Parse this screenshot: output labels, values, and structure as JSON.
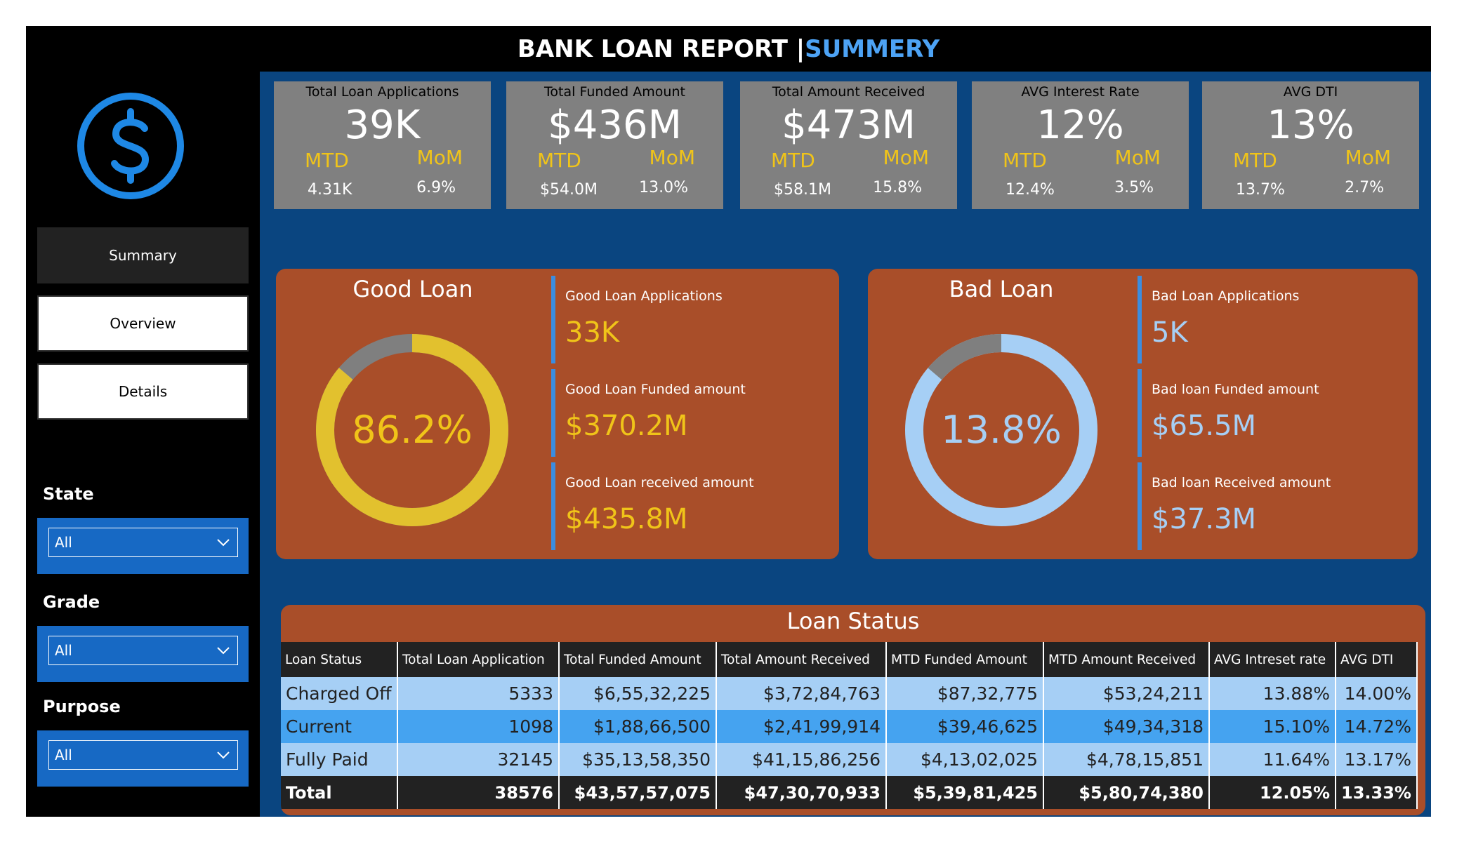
{
  "header": {
    "title_main": "BANK LOAN REPORT | ",
    "title_accent": "SUMMERY"
  },
  "colors": {
    "accent_blue": "#4da3f5",
    "good_yellow": "#f0c419",
    "bad_blue": "#a6cff5",
    "panel_orange": "#a94e29",
    "main_bg": "#0a4580"
  },
  "sidebar": {
    "logo_icon": "dollar-circle-icon",
    "nav": [
      {
        "label": "Summary",
        "active": true
      },
      {
        "label": "Overview",
        "active": false
      },
      {
        "label": "Details",
        "active": false
      }
    ],
    "filters": [
      {
        "label": "State",
        "value": "All"
      },
      {
        "label": "Grade",
        "value": "All"
      },
      {
        "label": "Purpose",
        "value": "All"
      }
    ]
  },
  "kpis": [
    {
      "title": "Total Loan Applications",
      "value": "39K",
      "mtd_label": "MTD",
      "mom_label": "MoM",
      "mtd": "4.31K",
      "mom": "6.9%"
    },
    {
      "title": "Total Funded Amount",
      "value": "$436M",
      "mtd_label": "MTD",
      "mom_label": "MoM",
      "mtd": "$54.0M",
      "mom": "13.0%"
    },
    {
      "title": "Total Amount Received",
      "value": "$473M",
      "mtd_label": "MTD",
      "mom_label": "MoM",
      "mtd": "$58.1M",
      "mom": "15.8%"
    },
    {
      "title": "AVG Interest Rate",
      "value": "12%",
      "mtd_label": "MTD",
      "mom_label": "MoM",
      "mtd": "12.4%",
      "mom": "3.5%"
    },
    {
      "title": "AVG DTI",
      "value": "13%",
      "mtd_label": "MTD",
      "mom_label": "MoM",
      "mtd": "13.7%",
      "mom": "2.7%"
    }
  ],
  "good_loan": {
    "title": "Good Loan",
    "percent_label": "86.2%",
    "percent_value": 86.2,
    "stats": [
      {
        "label": "Good Loan Applications",
        "value": "33K"
      },
      {
        "label": "Good Loan Funded amount",
        "value": "$370.2M"
      },
      {
        "label": "Good Loan received amount",
        "value": "$435.8M"
      }
    ]
  },
  "bad_loan": {
    "title": "Bad Loan",
    "percent_label": "13.8%",
    "percent_value": 13.8,
    "stats": [
      {
        "label": "Bad Loan Applications",
        "value": "5K"
      },
      {
        "label": "Bad loan Funded amount",
        "value": "$65.5M"
      },
      {
        "label": "Bad loan Received amount",
        "value": "$37.3M"
      }
    ]
  },
  "loan_status": {
    "title": "Loan Status",
    "columns": [
      "Loan Status",
      "Total Loan Application",
      "Total Funded Amount",
      "Total Amount Received",
      "MTD Funded Amount",
      "MTD Amount Received",
      "AVG Intreset rate",
      "AVG DTI"
    ],
    "rows": [
      [
        "Charged Off",
        "5333",
        "$6,55,32,225",
        "$3,72,84,763",
        "$87,32,775",
        "$53,24,211",
        "13.88%",
        "14.00%"
      ],
      [
        "Current",
        "1098",
        "$1,88,66,500",
        "$2,41,99,914",
        "$39,46,625",
        "$49,34,318",
        "15.10%",
        "14.72%"
      ],
      [
        "Fully Paid",
        "32145",
        "$35,13,58,350",
        "$41,15,86,256",
        "$4,13,02,025",
        "$4,78,15,851",
        "11.64%",
        "13.17%"
      ]
    ],
    "total": [
      "Total",
      "38576",
      "$43,57,57,075",
      "$47,30,70,933",
      "$5,39,81,425",
      "$5,80,74,380",
      "12.05%",
      "13.33%"
    ]
  }
}
